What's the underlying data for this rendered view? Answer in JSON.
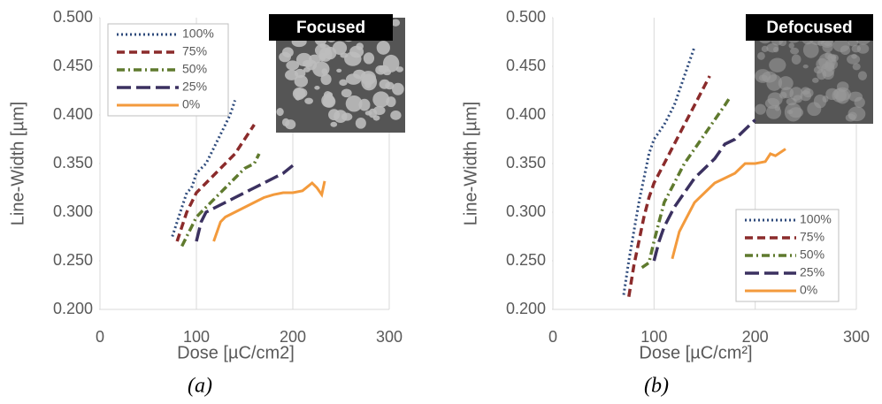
{
  "chart_data": [
    {
      "type": "line",
      "caption": "(a)",
      "image_label": "Focused",
      "xlabel": "Dose [µC/cm2]",
      "ylabel": "Line-Width [µm]",
      "xlim": [
        0,
        300
      ],
      "xticks": [
        0,
        100,
        200,
        300
      ],
      "ylim": [
        0.2,
        0.5
      ],
      "yticks": [
        {
          "value": 0.2,
          "label": "0.200"
        },
        {
          "value": 0.25,
          "label": "0.250"
        },
        {
          "value": 0.3,
          "label": "0.300"
        },
        {
          "value": 0.35,
          "label": "0.350"
        },
        {
          "value": 0.4,
          "label": "0.400"
        },
        {
          "value": 0.45,
          "label": "0.450"
        },
        {
          "value": 0.5,
          "label": "0.500"
        }
      ],
      "grid": "x",
      "legend_position": "upper left",
      "series": [
        {
          "name": "100%",
          "color": "#2f4b7c",
          "dash": "dotted",
          "x": [
            75,
            80,
            85,
            90,
            95,
            100,
            105,
            110,
            115,
            120,
            125,
            130,
            135,
            140
          ],
          "values": [
            0.275,
            0.29,
            0.305,
            0.32,
            0.325,
            0.34,
            0.345,
            0.35,
            0.36,
            0.37,
            0.38,
            0.39,
            0.4,
            0.415
          ]
        },
        {
          "name": "75%",
          "color": "#8b2b2b",
          "dash": "dashed",
          "x": [
            80,
            85,
            90,
            95,
            100,
            110,
            120,
            130,
            140,
            150,
            160
          ],
          "values": [
            0.27,
            0.285,
            0.3,
            0.31,
            0.32,
            0.33,
            0.34,
            0.35,
            0.36,
            0.375,
            0.39
          ]
        },
        {
          "name": "50%",
          "color": "#5f7a2e",
          "dash": "dashdot",
          "x": [
            85,
            90,
            95,
            100,
            110,
            120,
            130,
            140,
            150,
            160,
            165
          ],
          "values": [
            0.265,
            0.275,
            0.285,
            0.295,
            0.305,
            0.315,
            0.325,
            0.335,
            0.345,
            0.35,
            0.36
          ]
        },
        {
          "name": "25%",
          "color": "#3b3160",
          "dash": "longdash",
          "x": [
            100,
            105,
            110,
            120,
            130,
            140,
            150,
            160,
            170,
            180,
            190,
            200
          ],
          "values": [
            0.27,
            0.29,
            0.3,
            0.305,
            0.31,
            0.315,
            0.32,
            0.325,
            0.33,
            0.335,
            0.34,
            0.348
          ]
        },
        {
          "name": "0%",
          "color": "#f39a3c",
          "dash": "solid",
          "x": [
            118,
            125,
            130,
            140,
            150,
            160,
            170,
            180,
            190,
            200,
            210,
            220,
            225,
            230,
            233
          ],
          "values": [
            0.27,
            0.29,
            0.295,
            0.3,
            0.305,
            0.31,
            0.315,
            0.318,
            0.32,
            0.32,
            0.322,
            0.33,
            0.325,
            0.318,
            0.332
          ]
        }
      ]
    },
    {
      "type": "line",
      "caption": "(b)",
      "image_label": "Defocused",
      "xlabel": "Dose [µC/cm²]",
      "ylabel": "Line-Width [µm]",
      "xlim": [
        0,
        300
      ],
      "xticks": [
        0,
        100,
        200,
        300
      ],
      "ylim": [
        0.2,
        0.5
      ],
      "yticks": [
        {
          "value": 0.2,
          "label": "0.200"
        },
        {
          "value": 0.25,
          "label": "0.250"
        },
        {
          "value": 0.3,
          "label": "0.300"
        },
        {
          "value": 0.35,
          "label": "0.350"
        },
        {
          "value": 0.4,
          "label": "0.400"
        },
        {
          "value": 0.45,
          "label": "0.450"
        },
        {
          "value": 0.5,
          "label": "0.500"
        }
      ],
      "grid": "x",
      "legend_position": "lower right",
      "series": [
        {
          "name": "100%",
          "color": "#2f4b7c",
          "dash": "dotted",
          "x": [
            70,
            75,
            80,
            85,
            90,
            95,
            100,
            110,
            120,
            130,
            140
          ],
          "values": [
            0.215,
            0.25,
            0.28,
            0.31,
            0.335,
            0.36,
            0.375,
            0.39,
            0.41,
            0.44,
            0.47
          ]
        },
        {
          "name": "75%",
          "color": "#8b2b2b",
          "dash": "dashed",
          "x": [
            75,
            80,
            85,
            90,
            95,
            100,
            110,
            120,
            130,
            140,
            150,
            155
          ],
          "values": [
            0.213,
            0.245,
            0.27,
            0.295,
            0.315,
            0.33,
            0.35,
            0.37,
            0.39,
            0.41,
            0.43,
            0.44
          ]
        },
        {
          "name": "50%",
          "color": "#5f7a2e",
          "dash": "dashdot",
          "x": [
            88,
            95,
            100,
            105,
            110,
            120,
            130,
            140,
            150,
            160,
            170,
            175
          ],
          "values": [
            0.243,
            0.248,
            0.27,
            0.29,
            0.31,
            0.33,
            0.35,
            0.365,
            0.38,
            0.395,
            0.41,
            0.418
          ]
        },
        {
          "name": "25%",
          "color": "#3b3160",
          "dash": "longdash",
          "x": [
            100,
            105,
            110,
            120,
            130,
            140,
            150,
            160,
            170,
            180,
            190,
            200
          ],
          "values": [
            0.25,
            0.27,
            0.285,
            0.305,
            0.32,
            0.335,
            0.345,
            0.355,
            0.37,
            0.375,
            0.385,
            0.395
          ]
        },
        {
          "name": "0%",
          "color": "#f39a3c",
          "dash": "solid",
          "x": [
            118,
            125,
            130,
            140,
            150,
            160,
            170,
            180,
            190,
            200,
            210,
            215,
            220,
            230
          ],
          "values": [
            0.252,
            0.28,
            0.29,
            0.31,
            0.32,
            0.33,
            0.335,
            0.34,
            0.35,
            0.35,
            0.352,
            0.36,
            0.358,
            0.365
          ]
        }
      ]
    }
  ]
}
